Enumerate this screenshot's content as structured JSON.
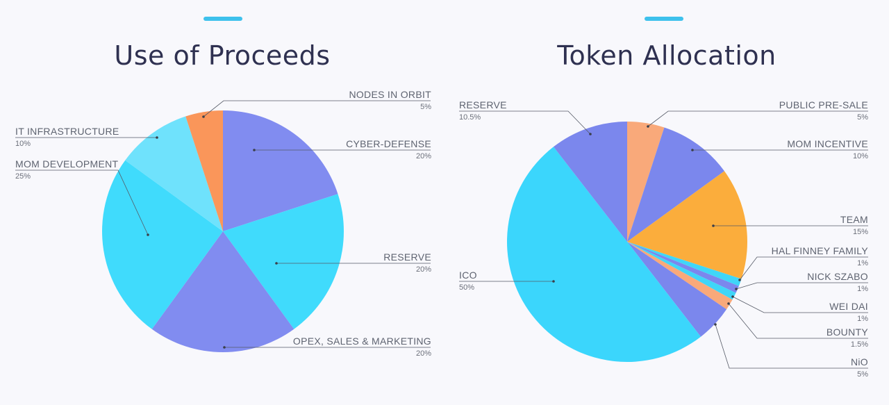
{
  "chart_data": [
    {
      "type": "pie",
      "title": "Use of Proceeds",
      "colors": {
        "accent": "#3ec1ec"
      },
      "slices": [
        {
          "label": "CYBER-DEFENSE",
          "pct": "20%",
          "value": 20,
          "color": "#818cf0"
        },
        {
          "label": "RESERVE",
          "pct": "20%",
          "value": 20,
          "color": "#40dbfc"
        },
        {
          "label": "OPEX, SALES & MARKETING",
          "pct": "20%",
          "value": 20,
          "color": "#818cf0"
        },
        {
          "label": "MOM DEVELOPMENT",
          "pct": "25%",
          "value": 25,
          "color": "#40dbfc"
        },
        {
          "label": "IT  INFRASTRUCTURE",
          "pct": "10%",
          "value": 10,
          "color": "#6fe2fc"
        },
        {
          "label": "NODES IN  ORBIT",
          "pct": "5%",
          "value": 5,
          "color": "#fa965a"
        }
      ]
    },
    {
      "type": "pie",
      "title": "Token Allocation",
      "colors": {
        "accent": "#3ec1ec"
      },
      "slices": [
        {
          "label": "PUBLIC PRE-SALE",
          "pct": "5%",
          "value": 5,
          "color": "#f9a97a"
        },
        {
          "label": "MOM INCENTIVE",
          "pct": "10%",
          "value": 10,
          "color": "#7b87ed"
        },
        {
          "label": "TEAM",
          "pct": "15%",
          "value": 15,
          "color": "#fbad3c"
        },
        {
          "label": "HAL FINNEY FAMILY",
          "pct": "1%",
          "value": 1,
          "color": "#3fd6f8"
        },
        {
          "label": "NICK SZABO",
          "pct": "1%",
          "value": 1,
          "color": "#7b87ed"
        },
        {
          "label": "WEI DAI",
          "pct": "1%",
          "value": 1,
          "color": "#3fd6f8"
        },
        {
          "label": "BOUNTY",
          "pct": "1.5%",
          "value": 1.5,
          "color": "#f9a97a"
        },
        {
          "label": "NiO",
          "pct": "5%",
          "value": 5,
          "color": "#7b87ed"
        },
        {
          "label": "ICO",
          "pct": "50%",
          "value": 50,
          "color": "#3bd6fc"
        },
        {
          "label": "RESERVE",
          "pct": "10.5%",
          "value": 10.5,
          "color": "#7b87ed"
        }
      ]
    }
  ]
}
